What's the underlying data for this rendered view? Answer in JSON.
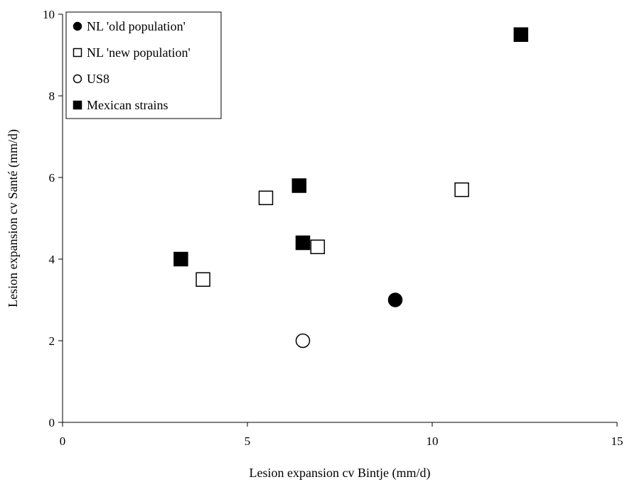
{
  "chart_data": {
    "type": "scatter",
    "xlabel": "Lesion expansion cv Bintje (mm/d)",
    "ylabel": "Lesion expansion cv Santé (mm/d)",
    "xlim": [
      0,
      15
    ],
    "ylim": [
      0,
      10
    ],
    "xticks": [
      "0",
      "5",
      "10",
      "15"
    ],
    "yticks": [
      "0",
      "2",
      "4",
      "6",
      "8",
      "10"
    ],
    "grid": false,
    "legend_position": "top-left",
    "series": [
      {
        "name": "NL 'old population'",
        "marker": "filled-circle",
        "color": "#000000",
        "x": [
          9.0
        ],
        "y": [
          3.0
        ]
      },
      {
        "name": "NL 'new population'",
        "marker": "open-square",
        "color": "#000000",
        "x": [
          3.8,
          5.5,
          6.9,
          10.8
        ],
        "y": [
          3.5,
          5.5,
          4.3,
          5.7
        ]
      },
      {
        "name": "US8",
        "marker": "open-circle",
        "color": "#000000",
        "x": [
          6.5
        ],
        "y": [
          2.0
        ]
      },
      {
        "name": "Mexican strains",
        "marker": "filled-square",
        "color": "#000000",
        "x": [
          3.2,
          6.4,
          6.5,
          12.4
        ],
        "y": [
          4.0,
          5.8,
          4.4,
          9.5
        ]
      }
    ]
  }
}
